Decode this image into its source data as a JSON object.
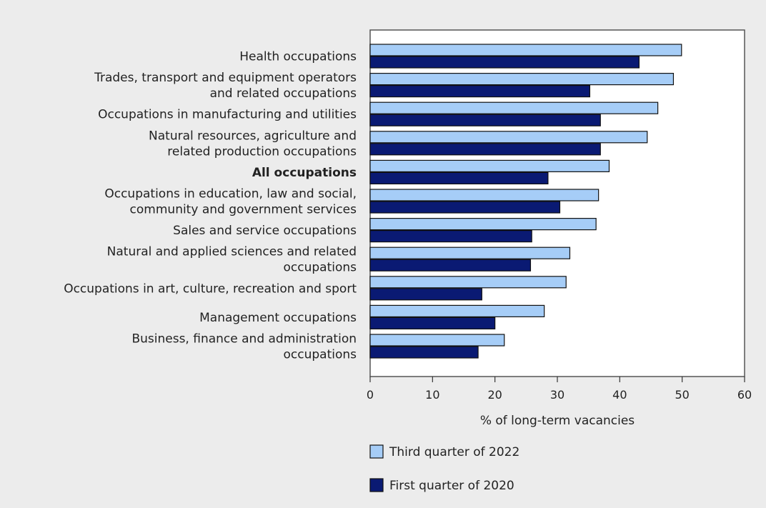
{
  "chart_data": {
    "type": "bar",
    "orientation": "horizontal",
    "categories": [
      [
        "Health occupations"
      ],
      [
        "Trades, transport and equipment operators",
        "and related occupations"
      ],
      [
        "Occupations in manufacturing and utilities"
      ],
      [
        "Natural resources, agriculture and",
        "related production occupations"
      ],
      [
        "All occupations"
      ],
      [
        "Occupations in education, law and social,",
        "community and government services"
      ],
      [
        "Sales and service occupations"
      ],
      [
        "Natural and applied sciences and related",
        "occupations"
      ],
      [
        "Occupations in art, culture, recreation and sport"
      ],
      [
        "Management occupations"
      ],
      [
        "Business, finance and administration",
        "occupations"
      ]
    ],
    "bold_category_index": 4,
    "series": [
      {
        "name": "Third quarter of 2022",
        "color": "#a6cdf7",
        "values": [
          49.9,
          48.6,
          46.1,
          44.4,
          38.3,
          36.6,
          36.2,
          32.0,
          31.4,
          27.9,
          21.5
        ]
      },
      {
        "name": "First quarter of 2020",
        "color": "#0a1a73",
        "values": [
          43.1,
          35.2,
          36.9,
          36.9,
          28.5,
          30.4,
          25.9,
          25.7,
          17.9,
          20.0,
          17.3
        ]
      }
    ],
    "xlim": [
      0,
      60
    ],
    "xticks": [
      "0",
      "10",
      "20",
      "30",
      "40",
      "50",
      "60"
    ],
    "xlabel": "% of long-term vacancies",
    "ylabel": "",
    "title": "",
    "grid": false,
    "legend_position": "bottom"
  }
}
